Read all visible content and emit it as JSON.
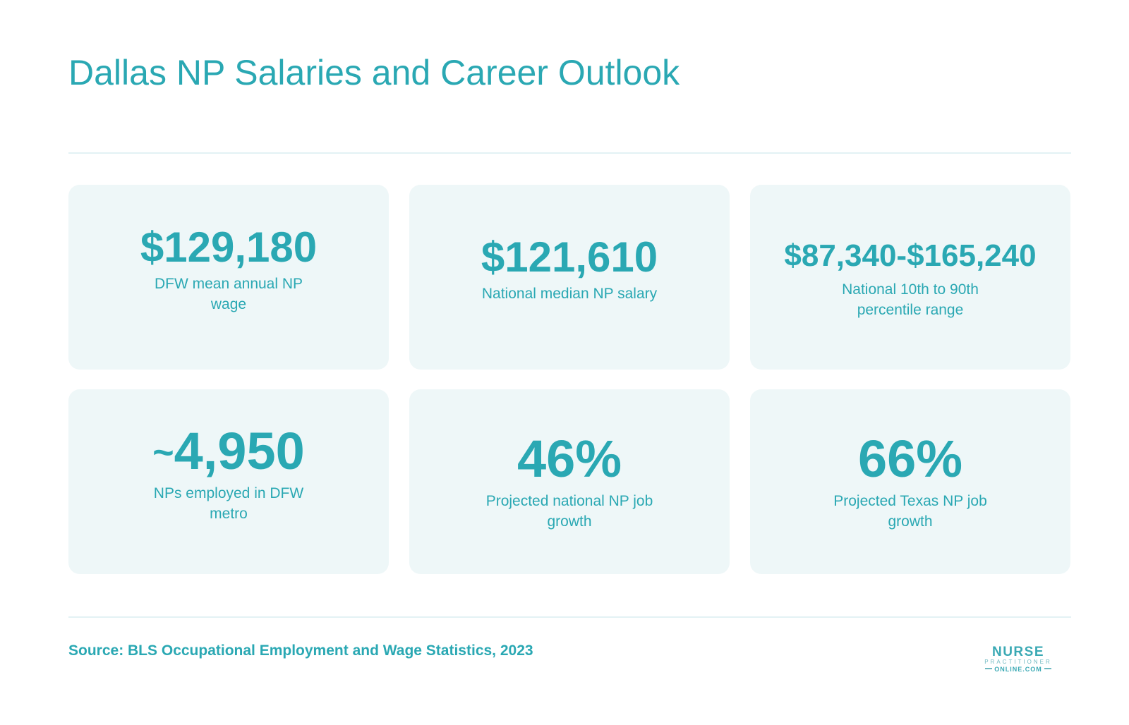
{
  "title": "Dallas NP Salaries and Career Outlook",
  "colors": {
    "accent": "#2aa8b3",
    "card_bg": "#eef7f8",
    "rule": "#e3f2f4"
  },
  "stats": [
    {
      "value": "$129,180",
      "label": "DFW mean annual NP wage"
    },
    {
      "value": "$121,610",
      "label": "National median NP salary"
    },
    {
      "value": "$87,340-$165,240",
      "label": "National 10th to 90th percentile range"
    },
    {
      "prefix": "~",
      "value": "4,950",
      "label": "NPs employed in DFW metro"
    },
    {
      "value": "46%",
      "label": "Projected national NP job growth"
    },
    {
      "value": "66%",
      "label": "Projected Texas NP job growth"
    }
  ],
  "source": "Source: BLS Occupational Employment and Wage Statistics, 2023",
  "logo": {
    "line1": "NURSE",
    "line2": "PRACTITIONER",
    "line3": "ONLINE.COM"
  }
}
